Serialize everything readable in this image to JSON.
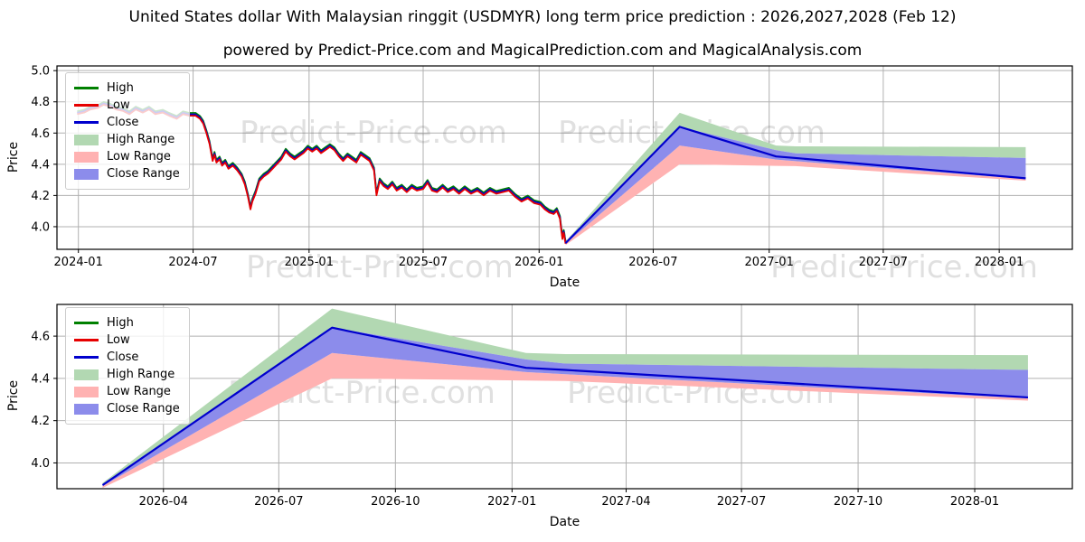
{
  "header": {
    "title": "United States dollar With Malaysian ringgit (USDMYR) long term price prediction : 2026,2027,2028 (Feb 12)",
    "subtitle": "powered by Predict-Price.com and MagicalPrediction.com and MagicalAnalysis.com"
  },
  "watermark": {
    "text": "Predict-Price.com"
  },
  "colors": {
    "high_line": "#008000",
    "low_line": "#e60000",
    "close_line": "#0000cd",
    "high_range_fill": "#b2d8b2",
    "low_range_fill": "#ffb2b2",
    "close_range_fill": "#8c8ceb",
    "grid": "#b0b0b0",
    "frame": "#000000"
  },
  "legend": {
    "entries": [
      {
        "label": "High",
        "type": "line",
        "color": "#008000"
      },
      {
        "label": "Low",
        "type": "line",
        "color": "#e60000"
      },
      {
        "label": "Close",
        "type": "line",
        "color": "#0000cd"
      },
      {
        "label": "High Range",
        "type": "patch",
        "color": "#b2d8b2"
      },
      {
        "label": "Low Range",
        "type": "patch",
        "color": "#ffb2b2"
      },
      {
        "label": "Close Range",
        "type": "patch",
        "color": "#8c8ceb"
      }
    ]
  },
  "chart_data": [
    {
      "type": "line",
      "name": "full-history-and-prediction",
      "xlabel": "Date",
      "ylabel": "Price",
      "grid": true,
      "legend_position": "upper left",
      "xlim": [
        "2023-11-28",
        "2028-04-26"
      ],
      "ylim": [
        3.855,
        5.03
      ],
      "yticks": [
        {
          "v": 5.0,
          "label": "5.0"
        },
        {
          "v": 4.8,
          "label": "4.8"
        },
        {
          "v": 4.6,
          "label": "4.6"
        },
        {
          "v": 4.4,
          "label": "4.4"
        },
        {
          "v": 4.2,
          "label": "4.2"
        },
        {
          "v": 4.0,
          "label": "4.0"
        }
      ],
      "xticks": [
        {
          "date": "2024-01-01",
          "label": "2024-01"
        },
        {
          "date": "2024-07-01",
          "label": "2024-07"
        },
        {
          "date": "2025-01-01",
          "label": "2025-01"
        },
        {
          "date": "2025-07-01",
          "label": "2025-07"
        },
        {
          "date": "2026-01-01",
          "label": "2026-01"
        },
        {
          "date": "2026-07-01",
          "label": "2026-07"
        },
        {
          "date": "2027-01-01",
          "label": "2027-01"
        },
        {
          "date": "2027-07-01",
          "label": "2027-07"
        },
        {
          "date": "2028-01-01",
          "label": "2028-01"
        }
      ],
      "history": {
        "high_offset": 0.009,
        "low_offset": 0.009,
        "points": [
          [
            "2023-12-30",
            4.73
          ],
          [
            "2024-01-10",
            4.74
          ],
          [
            "2024-01-20",
            4.76
          ],
          [
            "2024-02-01",
            4.77
          ],
          [
            "2024-02-10",
            4.79
          ],
          [
            "2024-02-20",
            4.78
          ],
          [
            "2024-03-01",
            4.76
          ],
          [
            "2024-03-12",
            4.75
          ],
          [
            "2024-03-22",
            4.73
          ],
          [
            "2024-04-01",
            4.76
          ],
          [
            "2024-04-12",
            4.74
          ],
          [
            "2024-04-22",
            4.76
          ],
          [
            "2024-05-02",
            4.73
          ],
          [
            "2024-05-14",
            4.74
          ],
          [
            "2024-05-24",
            4.72
          ],
          [
            "2024-06-05",
            4.7
          ],
          [
            "2024-06-15",
            4.73
          ],
          [
            "2024-06-25",
            4.72
          ],
          [
            "2024-07-05",
            4.72
          ],
          [
            "2024-07-12",
            4.7
          ],
          [
            "2024-07-17",
            4.67
          ],
          [
            "2024-07-22",
            4.61
          ],
          [
            "2024-07-27",
            4.54
          ],
          [
            "2024-08-01",
            4.43
          ],
          [
            "2024-08-04",
            4.47
          ],
          [
            "2024-08-07",
            4.42
          ],
          [
            "2024-08-12",
            4.44
          ],
          [
            "2024-08-16",
            4.4
          ],
          [
            "2024-08-21",
            4.42
          ],
          [
            "2024-08-26",
            4.38
          ],
          [
            "2024-09-02",
            4.4
          ],
          [
            "2024-09-09",
            4.37
          ],
          [
            "2024-09-16",
            4.33
          ],
          [
            "2024-09-21",
            4.28
          ],
          [
            "2024-09-26",
            4.2
          ],
          [
            "2024-09-30",
            4.12
          ],
          [
            "2024-10-03",
            4.17
          ],
          [
            "2024-10-08",
            4.22
          ],
          [
            "2024-10-14",
            4.3
          ],
          [
            "2024-10-21",
            4.33
          ],
          [
            "2024-10-28",
            4.35
          ],
          [
            "2024-11-04",
            4.38
          ],
          [
            "2024-11-11",
            4.41
          ],
          [
            "2024-11-18",
            4.44
          ],
          [
            "2024-11-25",
            4.49
          ],
          [
            "2024-12-02",
            4.46
          ],
          [
            "2024-12-09",
            4.44
          ],
          [
            "2024-12-16",
            4.46
          ],
          [
            "2024-12-23",
            4.48
          ],
          [
            "2024-12-30",
            4.51
          ],
          [
            "2025-01-06",
            4.49
          ],
          [
            "2025-01-13",
            4.51
          ],
          [
            "2025-01-20",
            4.48
          ],
          [
            "2025-01-27",
            4.5
          ],
          [
            "2025-02-03",
            4.52
          ],
          [
            "2025-02-10",
            4.5
          ],
          [
            "2025-02-17",
            4.46
          ],
          [
            "2025-02-24",
            4.43
          ],
          [
            "2025-03-03",
            4.46
          ],
          [
            "2025-03-10",
            4.44
          ],
          [
            "2025-03-17",
            4.42
          ],
          [
            "2025-03-24",
            4.47
          ],
          [
            "2025-03-31",
            4.45
          ],
          [
            "2025-04-07",
            4.43
          ],
          [
            "2025-04-14",
            4.37
          ],
          [
            "2025-04-18",
            4.21
          ],
          [
            "2025-04-23",
            4.3
          ],
          [
            "2025-04-29",
            4.27
          ],
          [
            "2025-05-06",
            4.25
          ],
          [
            "2025-05-13",
            4.28
          ],
          [
            "2025-05-20",
            4.24
          ],
          [
            "2025-05-28",
            4.26
          ],
          [
            "2025-06-05",
            4.23
          ],
          [
            "2025-06-13",
            4.26
          ],
          [
            "2025-06-21",
            4.24
          ],
          [
            "2025-07-01",
            4.25
          ],
          [
            "2025-07-08",
            4.29
          ],
          [
            "2025-07-15",
            4.24
          ],
          [
            "2025-07-23",
            4.23
          ],
          [
            "2025-08-01",
            4.26
          ],
          [
            "2025-08-09",
            4.23
          ],
          [
            "2025-08-18",
            4.25
          ],
          [
            "2025-08-27",
            4.22
          ],
          [
            "2025-09-05",
            4.25
          ],
          [
            "2025-09-15",
            4.22
          ],
          [
            "2025-09-25",
            4.24
          ],
          [
            "2025-10-05",
            4.21
          ],
          [
            "2025-10-15",
            4.24
          ],
          [
            "2025-10-25",
            4.22
          ],
          [
            "2025-11-04",
            4.23
          ],
          [
            "2025-11-14",
            4.24
          ],
          [
            "2025-11-24",
            4.2
          ],
          [
            "2025-12-04",
            4.17
          ],
          [
            "2025-12-14",
            4.19
          ],
          [
            "2025-12-24",
            4.16
          ],
          [
            "2026-01-03",
            4.15
          ],
          [
            "2026-01-10",
            4.12
          ],
          [
            "2026-01-17",
            4.1
          ],
          [
            "2026-01-24",
            4.09
          ],
          [
            "2026-01-29",
            4.11
          ],
          [
            "2026-02-03",
            4.06
          ],
          [
            "2026-02-05",
            3.99
          ],
          [
            "2026-02-07",
            3.93
          ],
          [
            "2026-02-09",
            3.97
          ],
          [
            "2026-02-10",
            3.95
          ],
          [
            "2026-02-11",
            3.92
          ],
          [
            "2026-02-12",
            3.9
          ]
        ]
      },
      "forecast": {
        "dates": [
          "2026-02-12",
          "2026-08-12",
          "2027-01-12",
          "2027-02-12",
          "2028-02-12"
        ],
        "close": [
          3.895,
          4.64,
          4.45,
          4.44,
          4.31
        ],
        "bands": {
          "high_top": [
            3.905,
            4.73,
            4.52,
            4.515,
            4.51
          ],
          "close_top": [
            3.9,
            4.64,
            4.49,
            4.47,
            4.44
          ],
          "close_bottom": [
            3.89,
            4.52,
            4.43,
            4.42,
            4.305
          ],
          "low_bottom": [
            3.882,
            4.4,
            4.39,
            4.388,
            4.295
          ]
        }
      }
    },
    {
      "type": "line",
      "name": "prediction-detail",
      "xlabel": "Date",
      "ylabel": "Price",
      "grid": true,
      "legend_position": "upper left",
      "xlim": [
        "2026-01-07",
        "2028-03-18"
      ],
      "ylim": [
        3.878,
        4.75
      ],
      "yticks": [
        {
          "v": 4.6,
          "label": "4.6"
        },
        {
          "v": 4.4,
          "label": "4.4"
        },
        {
          "v": 4.2,
          "label": "4.2"
        },
        {
          "v": 4.0,
          "label": "4.0"
        }
      ],
      "xticks": [
        {
          "date": "2026-04-01",
          "label": "2026-04"
        },
        {
          "date": "2026-07-01",
          "label": "2026-07"
        },
        {
          "date": "2026-10-01",
          "label": "2026-10"
        },
        {
          "date": "2027-01-01",
          "label": "2027-01"
        },
        {
          "date": "2027-04-01",
          "label": "2027-04"
        },
        {
          "date": "2027-07-01",
          "label": "2027-07"
        },
        {
          "date": "2027-10-01",
          "label": "2027-10"
        },
        {
          "date": "2028-01-01",
          "label": "2028-01"
        }
      ],
      "history": null,
      "forecast": {
        "dates": [
          "2026-02-12",
          "2026-08-12",
          "2027-01-12",
          "2027-02-12",
          "2028-02-12"
        ],
        "close": [
          3.895,
          4.64,
          4.45,
          4.44,
          4.31
        ],
        "bands": {
          "high_top": [
            3.905,
            4.73,
            4.52,
            4.515,
            4.51
          ],
          "close_top": [
            3.9,
            4.64,
            4.49,
            4.47,
            4.44
          ],
          "close_bottom": [
            3.89,
            4.52,
            4.43,
            4.42,
            4.305
          ],
          "low_bottom": [
            3.882,
            4.4,
            4.39,
            4.388,
            4.295
          ]
        }
      }
    }
  ]
}
